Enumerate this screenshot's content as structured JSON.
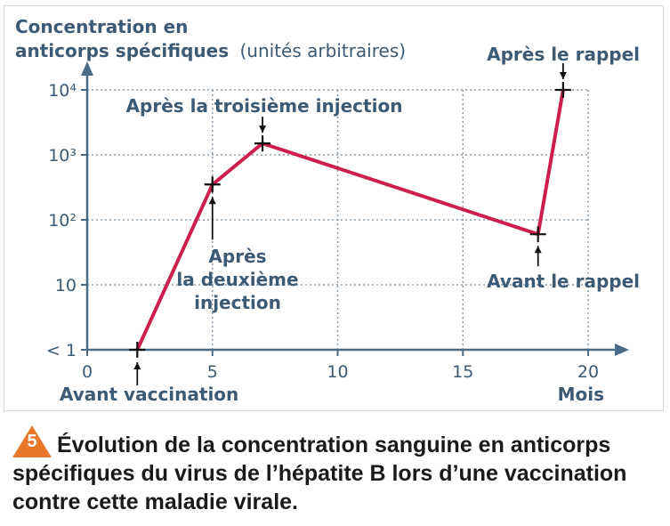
{
  "colors": {
    "axis": "#4a6b86",
    "text": "#3d5a74",
    "series": "#cc1f4e",
    "grid": "#8a9aa8",
    "badge": "#e8772a"
  },
  "figure": {
    "number": "5",
    "caption": "Évolution de la concentration sanguine en anticorps spécifiques du virus de l’hépatite B lors d’une vaccination contre cette maladie virale."
  },
  "chart_data": {
    "type": "line",
    "ylabel_line1": "Concentration en",
    "ylabel_line2_bold": "anticorps spécifiques",
    "ylabel_line2_rest": "(unités arbitraires)",
    "xlabel": "Mois",
    "x_ticks": [
      "0",
      "5",
      "10",
      "15",
      "20"
    ],
    "y_ticks": [
      "< 1",
      "10",
      "10²",
      "10³",
      "10⁴"
    ],
    "xlim": [
      0,
      20
    ],
    "y_scale": "log",
    "grid": true,
    "series": [
      {
        "points": [
          {
            "x": 2,
            "y": 1
          },
          {
            "x": 5,
            "y": 350
          },
          {
            "x": 7,
            "y": 1500
          },
          {
            "x": 18,
            "y": 60
          },
          {
            "x": 19,
            "y": 10000
          }
        ]
      }
    ],
    "annotations": {
      "before": "Avant vaccination",
      "second_l1": "Après",
      "second_l2": "la deuxième",
      "second_l3": "injection",
      "third": "Après la troisième injection",
      "before_booster": "Avant le rappel",
      "after_booster": "Après le rappel"
    }
  }
}
